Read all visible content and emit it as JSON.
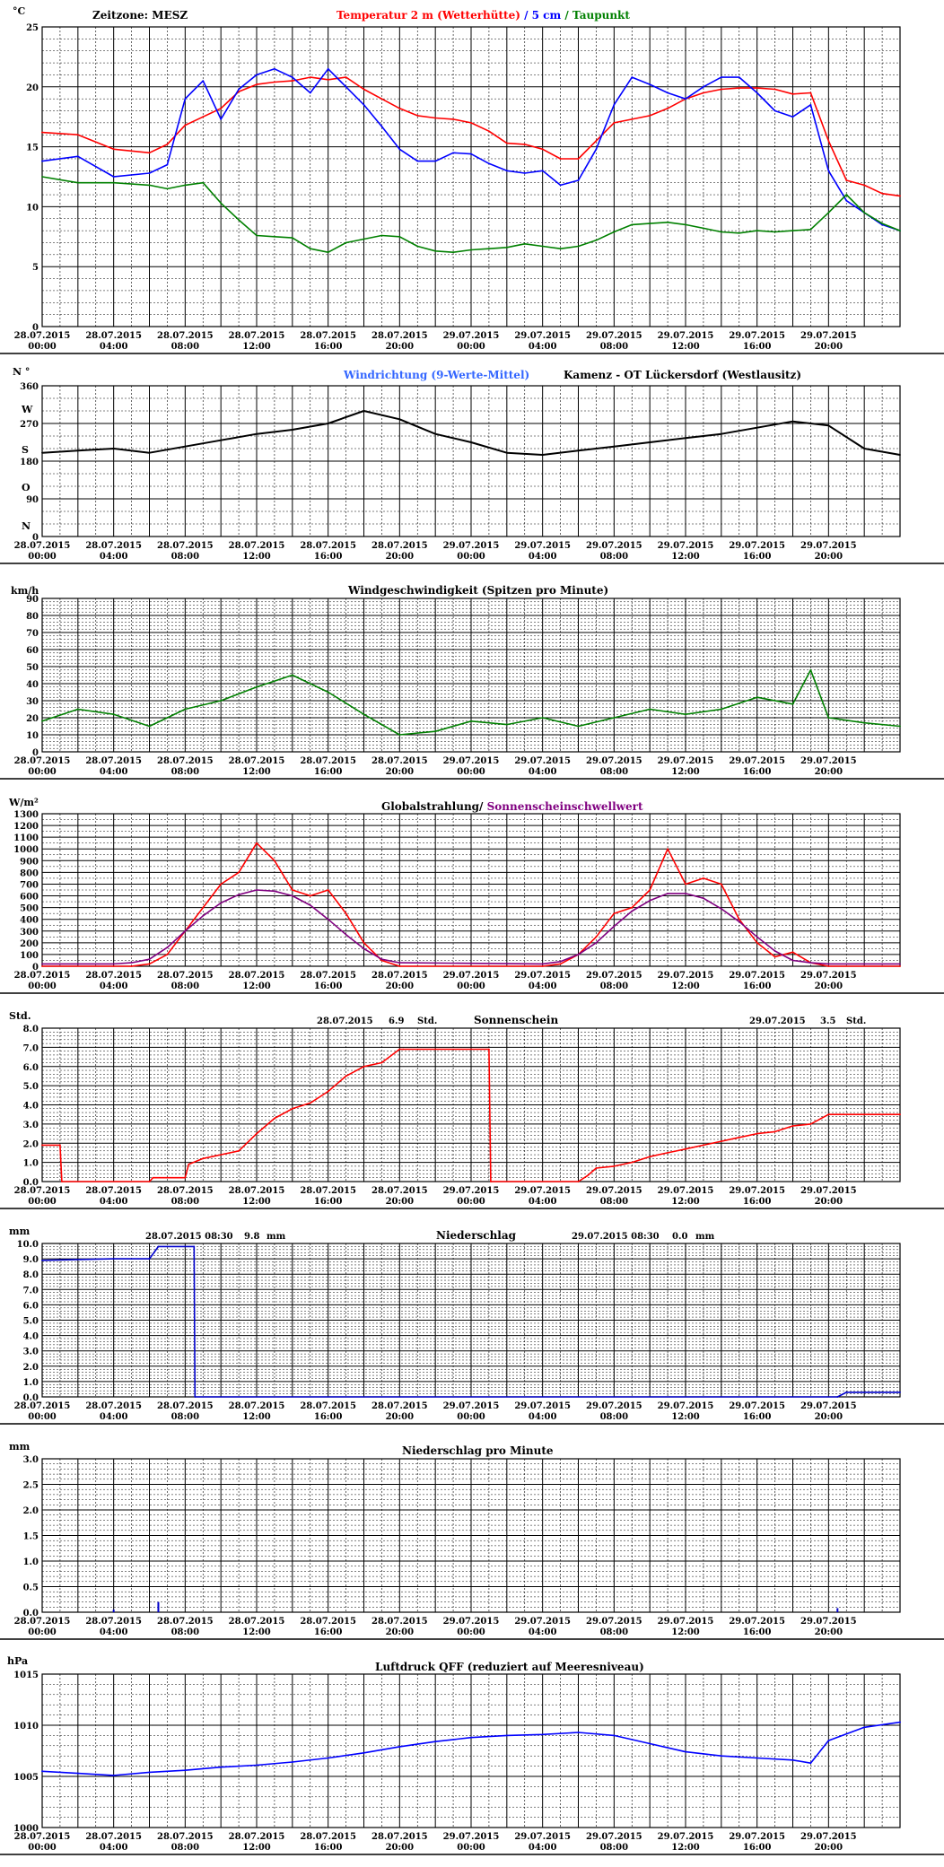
{
  "x_tick_labels": [
    {
      "date": "28.07.2015",
      "time": "00:00"
    },
    {
      "date": "28.07.2015",
      "time": "04:00"
    },
    {
      "date": "28.07.2015",
      "time": "08:00"
    },
    {
      "date": "28.07.2015",
      "time": "12:00"
    },
    {
      "date": "28.07.2015",
      "time": "16:00"
    },
    {
      "date": "28.07.2015",
      "time": "20:00"
    },
    {
      "date": "29.07.2015",
      "time": "00:00"
    },
    {
      "date": "29.07.2015",
      "time": "04:00"
    },
    {
      "date": "29.07.2015",
      "time": "08:00"
    },
    {
      "date": "29.07.2015",
      "time": "12:00"
    },
    {
      "date": "29.07.2015",
      "time": "16:00"
    },
    {
      "date": "29.07.2015",
      "time": "20:00"
    }
  ],
  "colors": {
    "grid": "#000000",
    "temp": "#ff0000",
    "soil": "#0000ff",
    "dew": "#008000",
    "winddir": "#3366ff",
    "winddir_mean": "#000000",
    "wind": "#008000",
    "radiation": "#ff0000",
    "threshold": "#800080",
    "sunshine": "#ff0000",
    "precip": "#0000cc",
    "pressure": "#0000ff"
  },
  "panels": {
    "temperature": {
      "timezone": "Zeitzone: MESZ",
      "unit": "°C",
      "title_temp": "Temperatur 2 m (Wetterhütte)",
      "title_sep1": " / ",
      "title_soil": "5 cm",
      "title_sep2": " / ",
      "title_dew": "Taupunkt",
      "yticks": [
        "25",
        "20",
        "15",
        "10",
        "5",
        "0"
      ]
    },
    "wind_direction": {
      "unit": "N °",
      "title_dir": "Windrichtung (9-Werte-Mittel)",
      "title_station": "Kamenz - OT Lückersdorf (Westlausitz)",
      "yticks": [
        "360",
        "270",
        "180",
        "90",
        "0"
      ],
      "compass": [
        "W",
        "S",
        "O",
        "N"
      ]
    },
    "wind_speed": {
      "unit": "km/h",
      "title": "Windgeschwindigkeit (Spitzen pro Minute)",
      "yticks": [
        "90",
        "80",
        "70",
        "60",
        "50",
        "40",
        "30",
        "20",
        "10",
        "0"
      ]
    },
    "radiation": {
      "unit": "W/m²",
      "title_a": "Globalstrahlung/",
      "title_b": " Sonnenscheinschwellwert",
      "yticks": [
        "1300",
        "1200",
        "1100",
        "1000",
        "900",
        "800",
        "700",
        "600",
        "500",
        "400",
        "300",
        "200",
        "100",
        "0"
      ]
    },
    "sunshine": {
      "unit": "Std.",
      "title": "Sonnenschein",
      "day1_date": "28.07.2015",
      "day1_value": "6.9",
      "day1_unit": "Std.",
      "day2_date": "29.07.2015",
      "day2_value": "3.5",
      "day2_unit": "Std.",
      "yticks": [
        "8.0",
        "7.0",
        "6.0",
        "5.0",
        "4.0",
        "3.0",
        "2.0",
        "1.0",
        "0.0"
      ]
    },
    "precipitation": {
      "unit": "mm",
      "title": "Niederschlag",
      "day1_stamp": "28.07.2015 08:30",
      "day1_value": "9.8",
      "day1_unit": "mm",
      "day2_stamp": "29.07.2015 08:30",
      "day2_value": "0.0",
      "day2_unit": "mm",
      "yticks": [
        "10.0",
        "9.0",
        "8.0",
        "7.0",
        "6.0",
        "5.0",
        "4.0",
        "3.0",
        "2.0",
        "1.0",
        "0.0"
      ]
    },
    "precip_minute": {
      "unit": "mm",
      "title": "Niederschlag pro Minute",
      "yticks": [
        "3.0",
        "2.5",
        "2.0",
        "1.5",
        "1.0",
        "0.5",
        "0.0"
      ]
    },
    "pressure": {
      "unit": "hPa",
      "title": "Luftdruck QFF (reduziert auf Meeresniveau)",
      "yticks": [
        "1015",
        "1010",
        "1005",
        "1000"
      ]
    }
  },
  "chart_data": [
    {
      "type": "line",
      "xlabel": "",
      "ylabel": "°C",
      "ylim": [
        0,
        25
      ],
      "x_hours": [
        0,
        2,
        4,
        6,
        7,
        8,
        9,
        10,
        11,
        12,
        13,
        14,
        15,
        16,
        17,
        18,
        19,
        20,
        21,
        22,
        23,
        24,
        25,
        26,
        27,
        28,
        29,
        30,
        31,
        32,
        33,
        34,
        35,
        36,
        37,
        38,
        39,
        40,
        41,
        42,
        43,
        44,
        45,
        46,
        47,
        48
      ],
      "series": [
        {
          "name": "Temperatur 2 m (Wetterhütte)",
          "values": [
            16.2,
            16.0,
            14.8,
            14.5,
            15.2,
            16.8,
            17.5,
            18.2,
            19.6,
            20.2,
            20.4,
            20.5,
            20.8,
            20.6,
            20.8,
            19.8,
            19.0,
            18.2,
            17.6,
            17.4,
            17.3,
            17.0,
            16.3,
            15.3,
            15.2,
            14.8,
            14.0,
            14.0,
            15.5,
            17.0,
            17.3,
            17.6,
            18.2,
            19.0,
            19.5,
            19.8,
            19.9,
            19.9,
            19.8,
            19.4,
            19.5,
            15.5,
            12.2,
            11.8,
            11.1,
            10.9
          ]
        },
        {
          "name": "5 cm",
          "values": [
            13.8,
            14.2,
            12.5,
            12.8,
            13.5,
            19.0,
            20.5,
            17.3,
            19.8,
            21.0,
            21.5,
            20.8,
            19.5,
            21.5,
            20.0,
            18.5,
            16.7,
            14.8,
            13.8,
            13.8,
            14.5,
            14.4,
            13.6,
            13.0,
            12.8,
            13.0,
            11.8,
            12.2,
            14.8,
            18.5,
            20.8,
            20.2,
            19.5,
            19.0,
            20.0,
            20.8,
            20.8,
            19.5,
            18.0,
            17.5,
            18.5,
            13.0,
            10.5,
            9.5,
            8.5,
            8.0
          ]
        },
        {
          "name": "Taupunkt",
          "values": [
            12.5,
            12.0,
            12.0,
            11.8,
            11.5,
            11.8,
            12.0,
            10.3,
            8.9,
            7.6,
            7.5,
            7.4,
            6.5,
            6.2,
            7.0,
            7.3,
            7.6,
            7.5,
            6.7,
            6.3,
            6.2,
            6.4,
            6.5,
            6.6,
            6.9,
            6.7,
            6.5,
            6.7,
            7.2,
            7.9,
            8.5,
            8.6,
            8.7,
            8.5,
            8.2,
            7.9,
            7.8,
            8.0,
            7.9,
            8.0,
            8.1,
            9.5,
            11.0,
            9.5,
            8.6,
            8.0
          ]
        }
      ]
    },
    {
      "type": "line",
      "xlabel": "",
      "ylabel": "°",
      "ylim": [
        0,
        360
      ],
      "x_hours": [
        0,
        2,
        4,
        6,
        8,
        10,
        12,
        14,
        16,
        18,
        20,
        22,
        24,
        26,
        28,
        30,
        32,
        34,
        36,
        38,
        40,
        42,
        44,
        46,
        48
      ],
      "series": [
        {
          "name": "Windrichtung (9-Werte-Mittel)",
          "values": [
            200,
            205,
            210,
            200,
            215,
            230,
            245,
            255,
            270,
            300,
            280,
            245,
            225,
            200,
            195,
            205,
            215,
            225,
            235,
            245,
            260,
            275,
            265,
            210,
            195
          ]
        }
      ]
    },
    {
      "type": "line",
      "xlabel": "",
      "ylabel": "km/h",
      "ylim": [
        0,
        90
      ],
      "x_hours": [
        0,
        2,
        4,
        6,
        8,
        10,
        12,
        14,
        16,
        18,
        20,
        22,
        24,
        26,
        28,
        30,
        32,
        34,
        36,
        38,
        40,
        42,
        43,
        44,
        46,
        48
      ],
      "series": [
        {
          "name": "Windgeschwindigkeit (Spitzen pro Minute)",
          "values": [
            18,
            25,
            22,
            15,
            25,
            30,
            38,
            45,
            35,
            22,
            10,
            12,
            18,
            16,
            20,
            15,
            20,
            25,
            22,
            25,
            32,
            28,
            48,
            20,
            17,
            15
          ]
        }
      ]
    },
    {
      "type": "line",
      "xlabel": "",
      "ylabel": "W/m²",
      "ylim": [
        0,
        1300
      ],
      "x_hours": [
        0,
        4,
        5,
        6,
        7,
        8,
        9,
        10,
        11,
        12,
        13,
        14,
        15,
        16,
        17,
        18,
        19,
        20,
        28,
        29,
        30,
        31,
        32,
        33,
        34,
        35,
        36,
        37,
        38,
        39,
        40,
        41,
        42,
        43,
        44,
        48
      ],
      "series": [
        {
          "name": "Globalstrahlung",
          "values": [
            0,
            0,
            0,
            20,
            100,
            300,
            500,
            700,
            800,
            1050,
            900,
            650,
            600,
            650,
            450,
            200,
            50,
            0,
            0,
            20,
            100,
            250,
            450,
            500,
            650,
            1000,
            700,
            750,
            700,
            400,
            200,
            80,
            120,
            30,
            0,
            0
          ]
        },
        {
          "name": "Sonnenscheinschwellwert",
          "values": [
            20,
            20,
            30,
            60,
            160,
            300,
            430,
            540,
            610,
            650,
            640,
            600,
            520,
            400,
            270,
            150,
            60,
            30,
            20,
            40,
            100,
            200,
            340,
            470,
            560,
            620,
            620,
            580,
            490,
            380,
            250,
            130,
            50,
            30,
            20,
            20
          ]
        }
      ]
    },
    {
      "type": "line",
      "xlabel": "",
      "ylabel": "Std.",
      "ylim": [
        0,
        8
      ],
      "x_hours": [
        0,
        1,
        1.1,
        6,
        6.2,
        8,
        8.2,
        9,
        11,
        12,
        13,
        14,
        15,
        16,
        17,
        18,
        19,
        20,
        20.2,
        25,
        25.1,
        30,
        30.5,
        31,
        32,
        33,
        34,
        35,
        36,
        37,
        38,
        39,
        40,
        41,
        42,
        43,
        44,
        48
      ],
      "series": [
        {
          "name": "Sonnenschein",
          "values": [
            1.9,
            1.9,
            0.0,
            0.0,
            0.2,
            0.2,
            0.9,
            1.2,
            1.6,
            2.5,
            3.3,
            3.8,
            4.1,
            4.7,
            5.5,
            6.0,
            6.2,
            6.9,
            6.9,
            6.9,
            0.0,
            0.0,
            0.3,
            0.7,
            0.8,
            1.0,
            1.3,
            1.5,
            1.7,
            1.9,
            2.1,
            2.3,
            2.5,
            2.6,
            2.9,
            3.0,
            3.5,
            3.5
          ]
        }
      ]
    },
    {
      "type": "line",
      "xlabel": "",
      "ylabel": "mm",
      "ylim": [
        0,
        10
      ],
      "x_hours": [
        0,
        4,
        6,
        6.5,
        8.5,
        8.55,
        44.5,
        45,
        48
      ],
      "series": [
        {
          "name": "Niederschlag",
          "values": [
            8.9,
            9.0,
            9.0,
            9.8,
            9.8,
            0.0,
            0.0,
            0.3,
            0.3
          ]
        }
      ]
    },
    {
      "type": "bar",
      "xlabel": "",
      "ylabel": "mm",
      "ylim": [
        0,
        3
      ],
      "x_hours": [
        4.0,
        6.5,
        44.5
      ],
      "series": [
        {
          "name": "Niederschlag pro Minute",
          "values": [
            0.05,
            0.2,
            0.08
          ]
        }
      ]
    },
    {
      "type": "line",
      "xlabel": "",
      "ylabel": "hPa",
      "ylim": [
        1000,
        1015
      ],
      "x_hours": [
        0,
        2,
        4,
        6,
        8,
        10,
        12,
        14,
        16,
        18,
        20,
        22,
        24,
        26,
        28,
        30,
        32,
        34,
        36,
        38,
        40,
        42,
        43,
        44,
        46,
        48
      ],
      "series": [
        {
          "name": "Luftdruck QFF",
          "values": [
            1005.5,
            1005.3,
            1005.1,
            1005.4,
            1005.6,
            1005.9,
            1006.1,
            1006.4,
            1006.8,
            1007.3,
            1007.9,
            1008.4,
            1008.8,
            1009.0,
            1009.1,
            1009.3,
            1009.0,
            1008.2,
            1007.4,
            1007.0,
            1006.8,
            1006.6,
            1006.3,
            1008.5,
            1009.8,
            1010.3
          ]
        }
      ]
    }
  ]
}
